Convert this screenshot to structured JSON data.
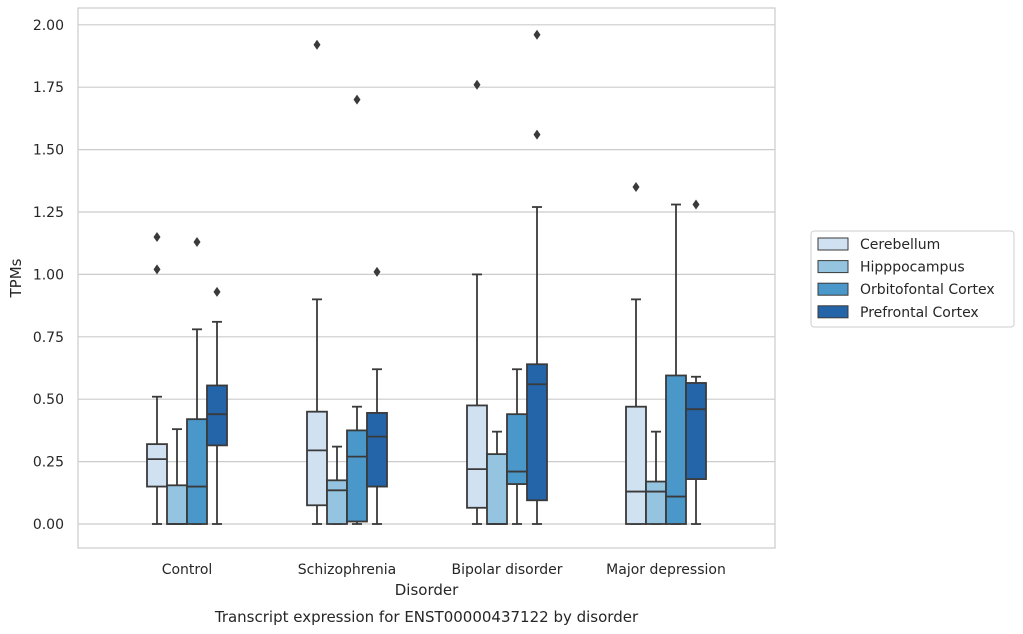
{
  "chart_data": {
    "type": "box",
    "title": "",
    "caption": "Transcript expression for ENST00000437122 by disorder",
    "xlabel": "Disorder",
    "ylabel": "TPMs",
    "ylim": [
      -0.1,
      2.06
    ],
    "yticks": [
      "0.00",
      "0.25",
      "0.50",
      "0.75",
      "1.00",
      "1.25",
      "1.50",
      "1.75",
      "2.00"
    ],
    "ytick_values": [
      0,
      0.25,
      0.5,
      0.75,
      1.0,
      1.25,
      1.5,
      1.75,
      2.0
    ],
    "grid": true,
    "legend_placement": "right",
    "categories": [
      "Control",
      "Schizophrenia",
      "Bipolar disorder",
      "Major depression"
    ],
    "series": [
      {
        "name": "Cerebellum",
        "color": "#d0e1f2",
        "boxes": [
          {
            "whislo": 0.0,
            "q1": 0.15,
            "med": 0.26,
            "q3": 0.32,
            "whishi": 0.51,
            "fliers": [
              1.02,
              1.15
            ]
          },
          {
            "whislo": 0.0,
            "q1": 0.075,
            "med": 0.295,
            "q3": 0.45,
            "whishi": 0.9,
            "fliers": [
              1.92
            ]
          },
          {
            "whislo": 0.0,
            "q1": 0.065,
            "med": 0.22,
            "q3": 0.475,
            "whishi": 1.0,
            "fliers": [
              1.76
            ]
          },
          {
            "whislo": 0.0,
            "q1": 0.0,
            "med": 0.13,
            "q3": 0.47,
            "whishi": 0.9,
            "fliers": [
              1.35
            ]
          }
        ]
      },
      {
        "name": "Hipppocampus",
        "color": "#94c4df",
        "boxes": [
          {
            "whislo": 0.0,
            "q1": 0.0,
            "med": 0.0,
            "q3": 0.155,
            "whishi": 0.38,
            "fliers": []
          },
          {
            "whislo": 0.0,
            "q1": 0.0,
            "med": 0.135,
            "q3": 0.175,
            "whishi": 0.31,
            "fliers": []
          },
          {
            "whislo": 0.0,
            "q1": 0.0,
            "med": 0.0,
            "q3": 0.28,
            "whishi": 0.37,
            "fliers": []
          },
          {
            "whislo": 0.0,
            "q1": 0.0,
            "med": 0.13,
            "q3": 0.17,
            "whishi": 0.37,
            "fliers": []
          }
        ]
      },
      {
        "name": "Orbitofontal Cortex",
        "color": "#4a98c9",
        "boxes": [
          {
            "whislo": 0.0,
            "q1": 0.0,
            "med": 0.15,
            "q3": 0.42,
            "whishi": 0.78,
            "fliers": [
              1.13
            ]
          },
          {
            "whislo": 0.0,
            "q1": 0.01,
            "med": 0.27,
            "q3": 0.375,
            "whishi": 0.47,
            "fliers": [
              1.7
            ]
          },
          {
            "whislo": 0.0,
            "q1": 0.16,
            "med": 0.21,
            "q3": 0.44,
            "whishi": 0.62,
            "fliers": []
          },
          {
            "whislo": 0.0,
            "q1": 0.0,
            "med": 0.11,
            "q3": 0.595,
            "whishi": 1.28,
            "fliers": []
          }
        ]
      },
      {
        "name": "Prefrontal Cortex",
        "color": "#2464a8",
        "boxes": [
          {
            "whislo": 0.0,
            "q1": 0.315,
            "med": 0.44,
            "q3": 0.555,
            "whishi": 0.81,
            "fliers": [
              0.93
            ]
          },
          {
            "whislo": 0.0,
            "q1": 0.15,
            "med": 0.35,
            "q3": 0.445,
            "whishi": 0.62,
            "fliers": [
              1.01
            ]
          },
          {
            "whislo": 0.0,
            "q1": 0.095,
            "med": 0.56,
            "q3": 0.64,
            "whishi": 1.27,
            "fliers": [
              1.56,
              1.96
            ]
          },
          {
            "whislo": 0.0,
            "q1": 0.18,
            "med": 0.46,
            "q3": 0.565,
            "whishi": 0.59,
            "fliers": [
              1.28
            ]
          }
        ]
      }
    ]
  }
}
